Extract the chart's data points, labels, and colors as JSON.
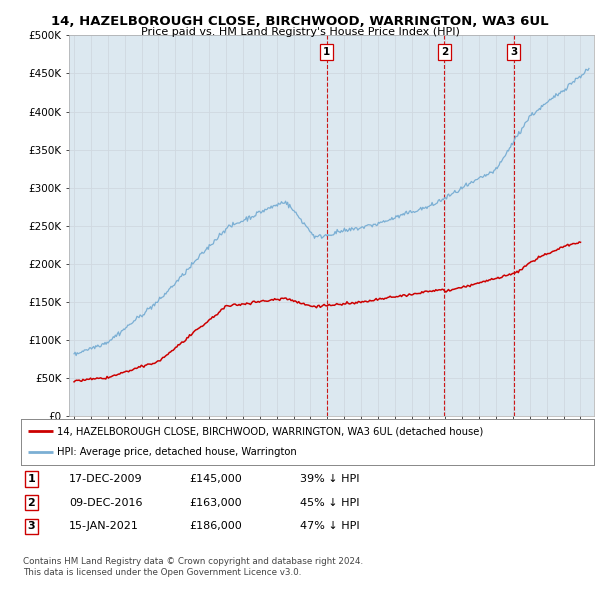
{
  "title": "14, HAZELBOROUGH CLOSE, BIRCHWOOD, WARRINGTON, WA3 6UL",
  "subtitle": "Price paid vs. HM Land Registry's House Price Index (HPI)",
  "legend_label_red": "14, HAZELBOROUGH CLOSE, BIRCHWOOD, WARRINGTON, WA3 6UL (detached house)",
  "legend_label_blue": "HPI: Average price, detached house, Warrington",
  "footer1": "Contains HM Land Registry data © Crown copyright and database right 2024.",
  "footer2": "This data is licensed under the Open Government Licence v3.0.",
  "transactions": [
    {
      "num": 1,
      "date": "17-DEC-2009",
      "price": "£145,000",
      "pct": "39% ↓ HPI",
      "x": 2009.96
    },
    {
      "num": 2,
      "date": "09-DEC-2016",
      "price": "£163,000",
      "pct": "45% ↓ HPI",
      "x": 2016.94
    },
    {
      "num": 3,
      "date": "15-JAN-2021",
      "price": "£186,000",
      "pct": "47% ↓ HPI",
      "x": 2021.04
    }
  ],
  "ylim": [
    0,
    500000
  ],
  "yticks": [
    0,
    50000,
    100000,
    150000,
    200000,
    250000,
    300000,
    350000,
    400000,
    450000,
    500000
  ],
  "ytick_labels": [
    "£0",
    "£50K",
    "£100K",
    "£150K",
    "£200K",
    "£250K",
    "£300K",
    "£350K",
    "£400K",
    "£450K",
    "£500K"
  ],
  "red_color": "#cc0000",
  "blue_color": "#7bafd4",
  "vline_color": "#cc0000",
  "grid_color": "#d0d8e0",
  "bg_color": "#ffffff",
  "plot_bg_color": "#dce8f0",
  "xmin": 1994.7,
  "xmax": 2025.8
}
